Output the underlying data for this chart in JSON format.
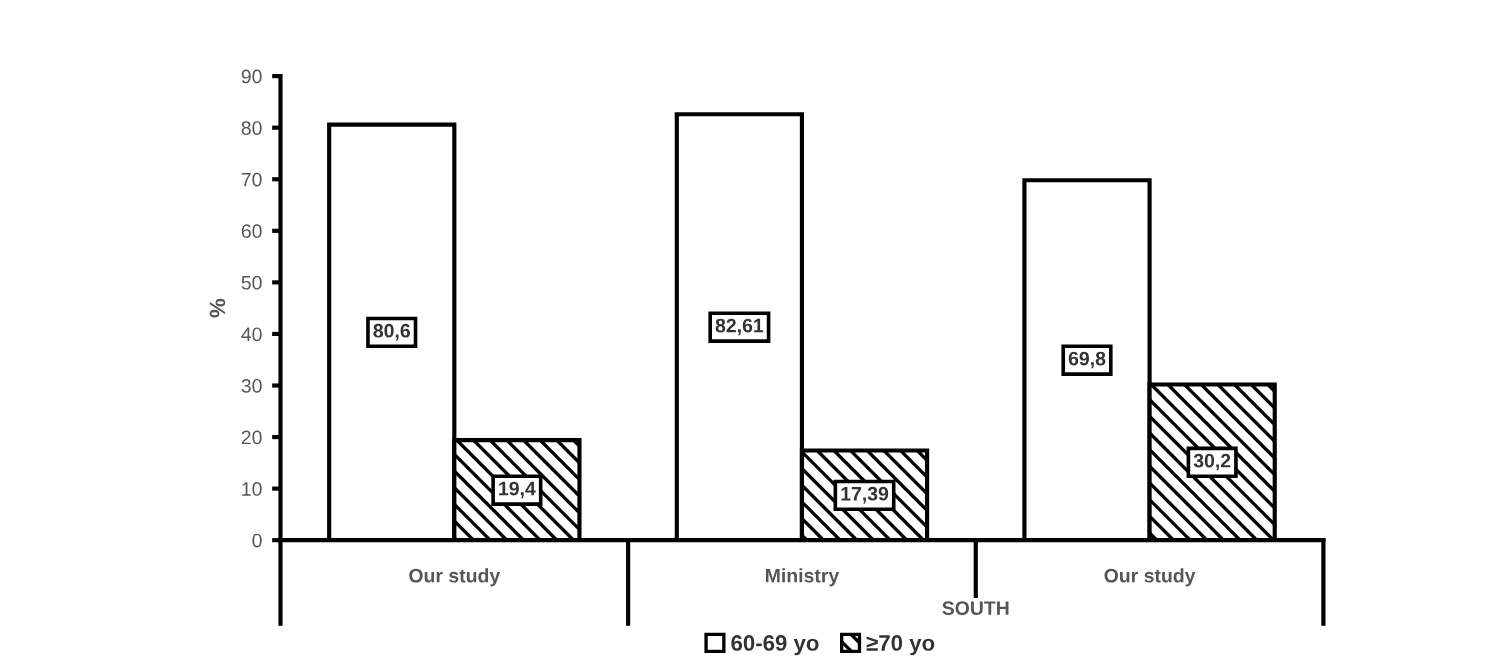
{
  "chart_data": {
    "type": "bar",
    "ylabel": "%",
    "categories": [
      "Our study",
      "Ministry",
      "Our study"
    ],
    "series": [
      {
        "name": "60-69 yo",
        "color": "#ffffff",
        "values": [
          80.6,
          82.61,
          69.8
        ],
        "value_labels": [
          "80,6",
          "82,61",
          "69,8"
        ]
      },
      {
        "name": "≥70 yo",
        "color": "#000000",
        "values": [
          19.4,
          17.39,
          30.2
        ],
        "value_labels": [
          "19,4",
          "17,39",
          "30,2"
        ]
      }
    ],
    "annotations": [
      "SOUTH"
    ],
    "ylim": [
      0,
      90
    ],
    "yticks": [
      0,
      10,
      20,
      30,
      40,
      50,
      60,
      70,
      80,
      90
    ],
    "grid": false,
    "legend": "bottom"
  }
}
